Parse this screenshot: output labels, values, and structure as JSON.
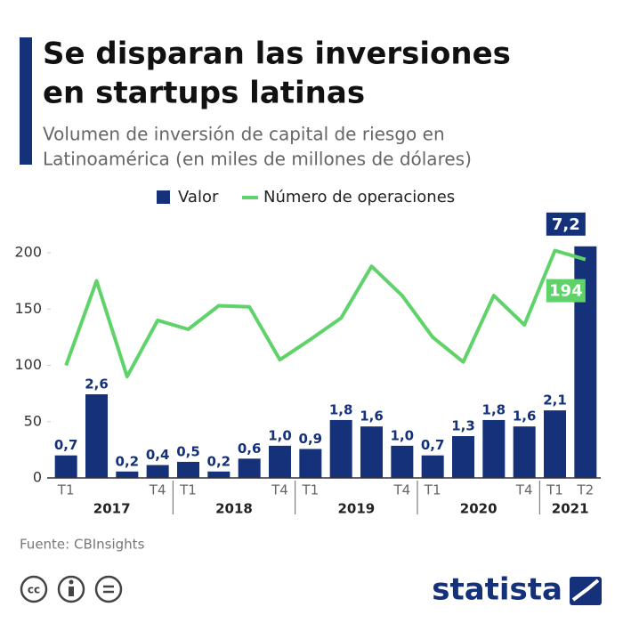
{
  "chart_data": {
    "type": "bar_line",
    "title": [
      "Se disparan las inversiones",
      "en startups latinas"
    ],
    "subtitle": [
      "Volumen de inversión de capital de riesgo en",
      "Latinoamérica (en miles de millones de dólares)"
    ],
    "categories": [
      "T1",
      null,
      null,
      "T4",
      "T1",
      null,
      null,
      "T4",
      "T1",
      null,
      null,
      "T4",
      "T1",
      null,
      null,
      "T4",
      "T1",
      "T2"
    ],
    "groups": [
      {
        "label": "2017",
        "size": 4
      },
      {
        "label": "2018",
        "size": 4
      },
      {
        "label": "2019",
        "size": 4
      },
      {
        "label": "2020",
        "size": 4
      },
      {
        "label": "2021",
        "size": 2
      }
    ],
    "series": [
      {
        "name": "Valor",
        "type": "bar",
        "axis": "y2",
        "color": "#14317a",
        "values": [
          0.7,
          2.6,
          0.2,
          0.4,
          0.5,
          0.2,
          0.6,
          1.0,
          0.9,
          1.8,
          1.6,
          1.0,
          0.7,
          1.3,
          1.8,
          1.6,
          2.1,
          7.2
        ],
        "value_labels": [
          "0,7",
          "2,6",
          "0,2",
          "0,4",
          "0,5",
          "0,2",
          "0,6",
          "1,0",
          "0,9",
          "1,8",
          "1,6",
          "1,0",
          "0,7",
          "1,3",
          "1,8",
          "1,6",
          "2,1",
          "7,2"
        ]
      },
      {
        "name": "Número de operaciones",
        "type": "line",
        "color": "#5fd36a",
        "values": [
          100,
          175,
          90,
          140,
          132,
          153,
          152,
          105,
          123,
          142,
          188,
          162,
          125,
          103,
          162,
          136,
          202,
          194
        ],
        "value_labels": [
          null,
          null,
          null,
          null,
          null,
          null,
          null,
          null,
          null,
          null,
          null,
          null,
          null,
          null,
          null,
          null,
          null,
          "194"
        ]
      }
    ],
    "ylim": [
      0,
      200
    ],
    "yticks": [
      0,
      50,
      100,
      150,
      200
    ],
    "y2lim": [
      0,
      7.0
    ],
    "grid": false,
    "legend": "top",
    "source": "Fuente: CBInsights",
    "logo": "statista"
  }
}
